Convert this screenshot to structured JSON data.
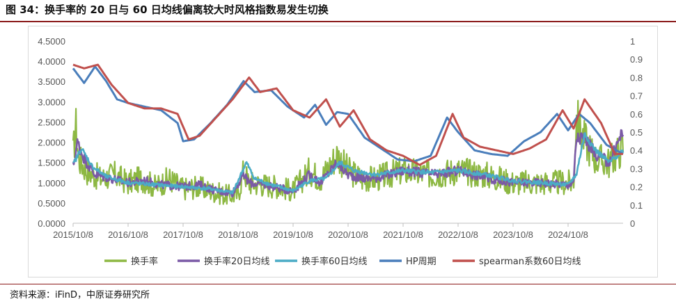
{
  "header": {
    "title": "图 34：换手率的 20 日与 60 日均线偏离较大时风格指数易发生切换"
  },
  "footer": {
    "source": "资料来源：iFinD，中原证券研究所"
  },
  "chart_data": {
    "type": "line",
    "x_ticks": [
      "2015/10/8",
      "2016/10/8",
      "2017/10/8",
      "2018/10/8",
      "2019/10/8",
      "2020/10/8",
      "2021/10/8",
      "2022/10/8",
      "2023/10/8",
      "2024/10/8"
    ],
    "x_range": [
      "2015/10/8",
      "2025/10/8"
    ],
    "y_left": {
      "ticks": [
        "0.0000",
        "0.5000",
        "1.0000",
        "1.5000",
        "2.0000",
        "2.5000",
        "3.0000",
        "3.5000",
        "4.0000",
        "4.5000"
      ],
      "range": [
        0,
        4.5
      ]
    },
    "y_right": {
      "ticks": [
        "0",
        "0.1",
        "0.2",
        "0.3",
        "0.4",
        "0.5",
        "0.6",
        "0.7",
        "0.8",
        "0.9",
        "1"
      ],
      "range": [
        0,
        1
      ]
    },
    "legend_position": "bottom",
    "grid": false,
    "series": [
      {
        "name": "换手率",
        "axis": "left",
        "color": "#8db843",
        "noise": 0.35,
        "points": [
          [
            0,
            1.7
          ],
          [
            0.05,
            2.4
          ],
          [
            0.1,
            1.6
          ],
          [
            0.25,
            1.3
          ],
          [
            0.5,
            1.1
          ],
          [
            0.75,
            1.2
          ],
          [
            1.0,
            1.0
          ],
          [
            1.25,
            1.1
          ],
          [
            1.5,
            0.9
          ],
          [
            1.75,
            1.1
          ],
          [
            2.0,
            0.85
          ],
          [
            2.25,
            0.9
          ],
          [
            2.5,
            0.8
          ],
          [
            2.75,
            0.7
          ],
          [
            3.0,
            0.7
          ],
          [
            3.1,
            1.3
          ],
          [
            3.2,
            1.0
          ],
          [
            3.5,
            0.95
          ],
          [
            3.75,
            0.9
          ],
          [
            4.0,
            0.8
          ],
          [
            4.3,
            1.3
          ],
          [
            4.5,
            1.1
          ],
          [
            4.8,
            1.7
          ],
          [
            5.0,
            1.3
          ],
          [
            5.25,
            1.1
          ],
          [
            5.5,
            1.1
          ],
          [
            6.0,
            1.3
          ],
          [
            6.5,
            1.2
          ],
          [
            7.0,
            1.3
          ],
          [
            7.5,
            1.2
          ],
          [
            8.0,
            1.0
          ],
          [
            8.5,
            1.0
          ],
          [
            9.0,
            1.0
          ],
          [
            9.1,
            1.0
          ],
          [
            9.15,
            2.6
          ],
          [
            9.25,
            2.2
          ],
          [
            9.5,
            1.6
          ],
          [
            9.75,
            1.5
          ],
          [
            10.0,
            1.9
          ]
        ]
      },
      {
        "name": "换手率20日均线",
        "axis": "left",
        "color": "#7b5aa6",
        "noise": 0.12,
        "points": [
          [
            0,
            1.4
          ],
          [
            0.08,
            2.0
          ],
          [
            0.2,
            1.6
          ],
          [
            0.4,
            1.2
          ],
          [
            0.7,
            1.1
          ],
          [
            1.0,
            1.0
          ],
          [
            1.3,
            1.05
          ],
          [
            1.6,
            0.95
          ],
          [
            2.0,
            0.9
          ],
          [
            2.3,
            0.95
          ],
          [
            2.6,
            0.8
          ],
          [
            2.9,
            0.75
          ],
          [
            3.1,
            1.2
          ],
          [
            3.2,
            1.0
          ],
          [
            3.5,
            0.95
          ],
          [
            3.8,
            0.85
          ],
          [
            4.0,
            0.8
          ],
          [
            4.3,
            1.2
          ],
          [
            4.5,
            1.0
          ],
          [
            4.8,
            1.5
          ],
          [
            5.0,
            1.2
          ],
          [
            5.3,
            1.1
          ],
          [
            5.6,
            1.15
          ],
          [
            6.0,
            1.3
          ],
          [
            6.3,
            1.25
          ],
          [
            6.6,
            1.2
          ],
          [
            7.0,
            1.3
          ],
          [
            7.3,
            1.2
          ],
          [
            7.6,
            1.1
          ],
          [
            8.0,
            1.0
          ],
          [
            8.5,
            1.0
          ],
          [
            9.0,
            0.95
          ],
          [
            9.1,
            1.0
          ],
          [
            9.15,
            2.1
          ],
          [
            9.3,
            2.1
          ],
          [
            9.5,
            1.7
          ],
          [
            9.75,
            1.5
          ],
          [
            10.0,
            2.3
          ]
        ]
      },
      {
        "name": "换手率60日均线",
        "axis": "left",
        "color": "#4bacc6",
        "noise": 0.05,
        "points": [
          [
            0,
            1.45
          ],
          [
            0.15,
            1.85
          ],
          [
            0.35,
            1.4
          ],
          [
            0.6,
            1.15
          ],
          [
            1.0,
            1.0
          ],
          [
            1.5,
            0.95
          ],
          [
            2.0,
            0.9
          ],
          [
            2.5,
            0.85
          ],
          [
            2.9,
            0.75
          ],
          [
            3.15,
            1.5
          ],
          [
            3.3,
            1.1
          ],
          [
            3.6,
            0.95
          ],
          [
            4.0,
            0.8
          ],
          [
            4.3,
            1.05
          ],
          [
            4.6,
            1.1
          ],
          [
            4.85,
            1.5
          ],
          [
            5.1,
            1.3
          ],
          [
            5.5,
            1.2
          ],
          [
            6.0,
            1.3
          ],
          [
            6.5,
            1.25
          ],
          [
            7.0,
            1.3
          ],
          [
            7.5,
            1.2
          ],
          [
            8.0,
            1.05
          ],
          [
            8.5,
            1.0
          ],
          [
            9.0,
            0.95
          ],
          [
            9.15,
            1.2
          ],
          [
            9.3,
            2.2
          ],
          [
            9.5,
            1.8
          ],
          [
            9.75,
            1.5
          ],
          [
            10.0,
            1.8
          ]
        ]
      },
      {
        "name": "HP周期",
        "axis": "right",
        "color": "#4a7ebb",
        "noise": 0,
        "points": [
          [
            0,
            0.85
          ],
          [
            0.2,
            0.77
          ],
          [
            0.4,
            0.86
          ],
          [
            0.6,
            0.78
          ],
          [
            0.8,
            0.68
          ],
          [
            1.0,
            0.66
          ],
          [
            1.3,
            0.64
          ],
          [
            1.6,
            0.62
          ],
          [
            1.9,
            0.55
          ],
          [
            2.0,
            0.45
          ],
          [
            2.2,
            0.46
          ],
          [
            2.5,
            0.55
          ],
          [
            2.8,
            0.65
          ],
          [
            3.1,
            0.78
          ],
          [
            3.3,
            0.72
          ],
          [
            3.6,
            0.73
          ],
          [
            3.9,
            0.64
          ],
          [
            4.2,
            0.58
          ],
          [
            4.4,
            0.65
          ],
          [
            4.6,
            0.54
          ],
          [
            4.8,
            0.61
          ],
          [
            5.0,
            0.6
          ],
          [
            5.3,
            0.47
          ],
          [
            5.6,
            0.41
          ],
          [
            5.9,
            0.35
          ],
          [
            6.2,
            0.34
          ],
          [
            6.5,
            0.37
          ],
          [
            6.8,
            0.58
          ],
          [
            7.0,
            0.5
          ],
          [
            7.3,
            0.4
          ],
          [
            7.6,
            0.38
          ],
          [
            7.9,
            0.37
          ],
          [
            8.2,
            0.45
          ],
          [
            8.5,
            0.5
          ],
          [
            8.8,
            0.6
          ],
          [
            9.0,
            0.51
          ],
          [
            9.2,
            0.6
          ],
          [
            9.4,
            0.55
          ],
          [
            9.7,
            0.43
          ],
          [
            10.0,
            0.38
          ]
        ]
      },
      {
        "name": "spearman系数60日均线",
        "axis": "right",
        "color": "#c0504d",
        "noise": 0,
        "points": [
          [
            0,
            0.87
          ],
          [
            0.2,
            0.85
          ],
          [
            0.45,
            0.87
          ],
          [
            0.7,
            0.76
          ],
          [
            1.0,
            0.66
          ],
          [
            1.3,
            0.63
          ],
          [
            1.6,
            0.63
          ],
          [
            1.9,
            0.6
          ],
          [
            2.1,
            0.46
          ],
          [
            2.3,
            0.48
          ],
          [
            2.6,
            0.58
          ],
          [
            2.9,
            0.68
          ],
          [
            3.2,
            0.8
          ],
          [
            3.4,
            0.72
          ],
          [
            3.7,
            0.74
          ],
          [
            4.0,
            0.62
          ],
          [
            4.3,
            0.58
          ],
          [
            4.6,
            0.68
          ],
          [
            4.85,
            0.53
          ],
          [
            5.1,
            0.62
          ],
          [
            5.4,
            0.46
          ],
          [
            5.7,
            0.4
          ],
          [
            6.0,
            0.37
          ],
          [
            6.3,
            0.32
          ],
          [
            6.6,
            0.37
          ],
          [
            6.9,
            0.6
          ],
          [
            7.1,
            0.47
          ],
          [
            7.4,
            0.42
          ],
          [
            7.7,
            0.4
          ],
          [
            8.0,
            0.38
          ],
          [
            8.3,
            0.41
          ],
          [
            8.6,
            0.46
          ],
          [
            8.9,
            0.62
          ],
          [
            9.1,
            0.52
          ],
          [
            9.3,
            0.68
          ],
          [
            9.6,
            0.55
          ],
          [
            9.85,
            0.38
          ],
          [
            10.0,
            0.38
          ]
        ]
      }
    ]
  }
}
